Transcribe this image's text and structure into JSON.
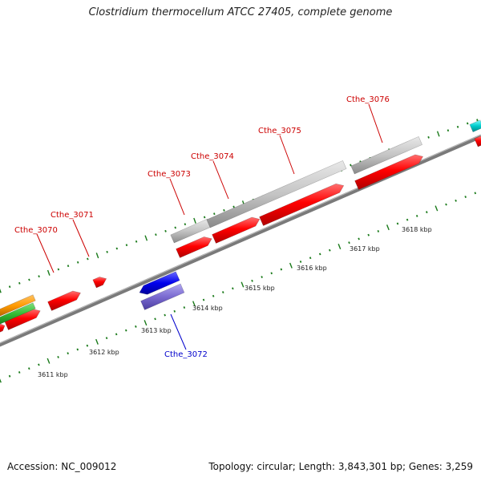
{
  "title": "Clostridium thermocellum ATCC 27405, complete genome",
  "footer": {
    "accession": "Accession: NC_009012",
    "summary": "Topology: circular; Length: 3,843,301 bp; Genes: 3,259"
  },
  "colors": {
    "forward_cds": "#ff0000",
    "reverse_cds": "#0000e0",
    "gray_feature": "#c0c0c0",
    "reverse_feature": "#7a6ad0",
    "orange_feature": "#ff9900",
    "green_feature": "#33bb33",
    "cyan_feature": "#00cccc",
    "forward_label": "#cc0000",
    "reverse_label": "#0000cc",
    "tick": "#1a7a1a"
  },
  "scale_labels": [
    "3611 kbp",
    "3612 kbp",
    "3613 kbp",
    "3614 kbp",
    "3615 kbp",
    "3616 kbp",
    "3617 kbp",
    "3618 kbp"
  ],
  "gene_labels": [
    {
      "text": "Cthe_3070",
      "strand": "forward"
    },
    {
      "text": "Cthe_3071",
      "strand": "forward"
    },
    {
      "text": "Cthe_3072",
      "strand": "reverse"
    },
    {
      "text": "Cthe_3073",
      "strand": "forward"
    },
    {
      "text": "Cthe_3074",
      "strand": "forward"
    },
    {
      "text": "Cthe_3075",
      "strand": "forward"
    },
    {
      "text": "Cthe_3076",
      "strand": "forward"
    }
  ]
}
